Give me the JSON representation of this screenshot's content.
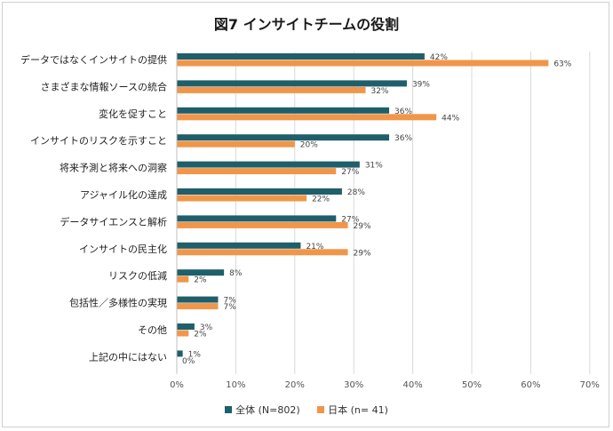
{
  "chart_data": {
    "type": "bar",
    "orientation": "horizontal",
    "title": "図7  インサイトチームの役割",
    "categories": [
      "データではなくインサイトの提供",
      "さまざまな情報ソースの統合",
      "変化を促すこと",
      "インサイトのリスクを示すこと",
      "将来予測と将来への洞察",
      "アジャイル化の達成",
      "データサイエンスと解析",
      "インサイトの民主化",
      "リスクの低減",
      "包括性／多様性の実現",
      "その他",
      "上記の中にはない"
    ],
    "series": [
      {
        "name": "全体 (N=802)",
        "color": "#1f5f6b",
        "values": [
          42,
          39,
          36,
          36,
          31,
          28,
          27,
          21,
          8,
          7,
          3,
          1
        ]
      },
      {
        "name": "日本 (n= 41)",
        "color": "#f0964a",
        "values": [
          63,
          32,
          44,
          20,
          27,
          22,
          29,
          29,
          2,
          7,
          2,
          0
        ]
      }
    ],
    "value_suffix": "%",
    "xlim": [
      0,
      70
    ],
    "xticks": [
      "0%",
      "10%",
      "20%",
      "30%",
      "40%",
      "50%",
      "60%",
      "70%"
    ],
    "grid": "vertical",
    "legend": "bottom"
  }
}
